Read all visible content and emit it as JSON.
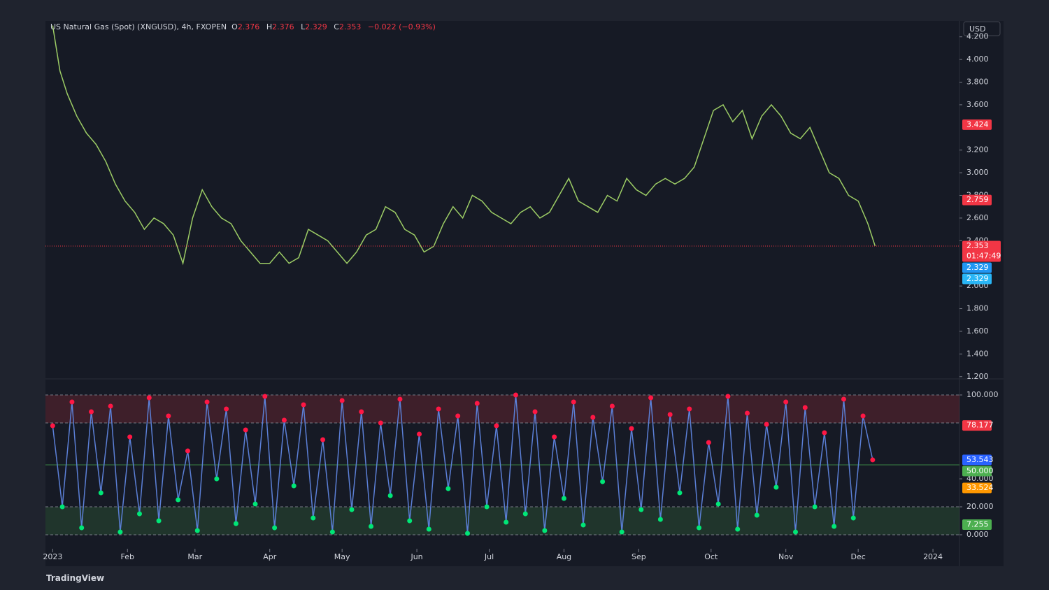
{
  "chart_data": [
    {
      "type": "line",
      "title": "US Natural Gas (Spot) (XNGUSD), 4h, FXOPEN",
      "ohlc": [
        {
          "label": "O",
          "value": "2.376"
        },
        {
          "label": "H",
          "value": "2.376"
        },
        {
          "label": "L",
          "value": "2.329"
        },
        {
          "label": "C",
          "value": "2.353"
        }
      ],
      "change": "−0.022 (−0.93%)",
      "axis_label": "USD",
      "color": "#9ccc65",
      "x": [
        0,
        3,
        6,
        10,
        14,
        18,
        22,
        26,
        30,
        34,
        38,
        42,
        46,
        50,
        54,
        58,
        62,
        66,
        70,
        74,
        78,
        82,
        86,
        90,
        94,
        98,
        102,
        106,
        110,
        114,
        118,
        122,
        126,
        130,
        134,
        138,
        142,
        146,
        150,
        154,
        158,
        162,
        166,
        170,
        174,
        178,
        182,
        186,
        190,
        194,
        198,
        202,
        206,
        210,
        214,
        218,
        222,
        226,
        230,
        234,
        238,
        242,
        246,
        250,
        254,
        258,
        262,
        266,
        270,
        274,
        278,
        282,
        286,
        290,
        294,
        298,
        302,
        306,
        310,
        314,
        318,
        322,
        326,
        330,
        334,
        338,
        341
      ],
      "values": [
        4.3,
        3.9,
        3.7,
        3.5,
        3.35,
        3.25,
        3.1,
        2.9,
        2.75,
        2.65,
        2.5,
        2.6,
        2.55,
        2.45,
        2.2,
        2.6,
        2.85,
        2.7,
        2.6,
        2.55,
        2.4,
        2.3,
        2.2,
        2.2,
        2.3,
        2.2,
        2.25,
        2.5,
        2.45,
        2.4,
        2.3,
        2.2,
        2.3,
        2.45,
        2.5,
        2.7,
        2.65,
        2.5,
        2.45,
        2.3,
        2.35,
        2.55,
        2.7,
        2.6,
        2.8,
        2.75,
        2.65,
        2.6,
        2.55,
        2.65,
        2.7,
        2.6,
        2.65,
        2.8,
        2.95,
        2.75,
        2.7,
        2.65,
        2.8,
        2.75,
        2.95,
        2.85,
        2.8,
        2.9,
        2.95,
        2.9,
        2.95,
        3.05,
        3.3,
        3.55,
        3.6,
        3.45,
        3.55,
        3.3,
        3.5,
        3.6,
        3.5,
        3.35,
        3.3,
        3.4,
        3.2,
        3.0,
        2.95,
        2.8,
        2.75,
        2.55,
        2.353
      ],
      "xlim": [
        -3,
        376
      ],
      "ylim": [
        1.18,
        4.34
      ],
      "yticks": [
        {
          "value": 4.2,
          "label": "4.200"
        },
        {
          "value": 4.0,
          "label": "4.000"
        },
        {
          "value": 3.8,
          "label": "3.800"
        },
        {
          "value": 3.6,
          "label": "3.600"
        },
        {
          "value": 3.2,
          "label": "3.200"
        },
        {
          "value": 3.0,
          "label": "3.000"
        },
        {
          "value": 2.8,
          "label": "2.800"
        },
        {
          "value": 2.6,
          "label": "2.600"
        },
        {
          "value": 2.4,
          "label": "2.400"
        },
        {
          "value": 2.0,
          "label": "2.000"
        },
        {
          "value": 1.8,
          "label": "1.800"
        },
        {
          "value": 1.6,
          "label": "1.600"
        },
        {
          "value": 1.4,
          "label": "1.400"
        },
        {
          "value": 1.2,
          "label": "1.200"
        }
      ],
      "price_tags": [
        {
          "value": 3.424,
          "label": "3.424",
          "color": "#f23645"
        },
        {
          "value": 2.759,
          "label": "2.759",
          "color": "#f23645"
        },
        {
          "value": 2.353,
          "label": "2.353",
          "sub": "01:47:49",
          "color": "#f23645"
        },
        {
          "value": 2.329,
          "label": "2.329",
          "color": "#2196f3"
        },
        {
          "value": 2.329,
          "label": "2.329",
          "color": "#29b6f6"
        }
      ]
    },
    {
      "type": "line",
      "color": "#5b7fd6",
      "x": [
        0,
        4,
        8,
        12,
        16,
        20,
        24,
        28,
        32,
        36,
        40,
        44,
        48,
        52,
        56,
        60,
        64,
        68,
        72,
        76,
        80,
        84,
        88,
        92,
        96,
        100,
        104,
        108,
        112,
        116,
        120,
        124,
        128,
        132,
        136,
        140,
        144,
        148,
        152,
        156,
        160,
        164,
        168,
        172,
        176,
        180,
        184,
        188,
        192,
        196,
        200,
        204,
        208,
        212,
        216,
        220,
        224,
        228,
        232,
        236,
        240,
        244,
        248,
        252,
        256,
        260,
        264,
        268,
        272,
        276,
        280,
        284,
        288,
        292,
        296,
        300,
        304,
        308,
        312,
        316,
        320,
        324,
        328,
        332,
        336,
        340
      ],
      "values": [
        78,
        20,
        95,
        5,
        88,
        30,
        92,
        2,
        70,
        15,
        98,
        10,
        85,
        25,
        60,
        3,
        95,
        40,
        90,
        8,
        75,
        22,
        99,
        5,
        82,
        35,
        93,
        12,
        68,
        2,
        96,
        18,
        88,
        6,
        80,
        28,
        97,
        10,
        72,
        4,
        90,
        33,
        85,
        1,
        94,
        20,
        78,
        9,
        100,
        15,
        88,
        3,
        70,
        26,
        95,
        7,
        84,
        38,
        92,
        2,
        76,
        18,
        98,
        11,
        86,
        30,
        90,
        5,
        66,
        22,
        99,
        4,
        87,
        14,
        79,
        34,
        95,
        2,
        91,
        20,
        73,
        6,
        97,
        12,
        85,
        53.543
      ],
      "xlim": [
        -3,
        376
      ],
      "ylim": [
        -10,
        110
      ],
      "yticks": [
        {
          "value": 100,
          "label": "100.000"
        },
        {
          "value": 40,
          "label": "40.000"
        },
        {
          "value": 20,
          "label": "20.000"
        },
        {
          "value": 0,
          "label": "0.000"
        }
      ],
      "zones": [
        {
          "from": 80,
          "to": 100,
          "color": "rgba(242,54,69,0.18)"
        },
        {
          "from": 0,
          "to": 20,
          "color": "rgba(76,175,80,0.18)"
        }
      ],
      "midline": 50,
      "price_tags": [
        {
          "value": 78.177,
          "label": "78.177",
          "color": "#f23645"
        },
        {
          "value": 53.543,
          "label": "53.543",
          "color": "#2962ff"
        },
        {
          "value": 50,
          "label": "50.000",
          "color": "#4caf50"
        },
        {
          "value": 33.524,
          "label": "33.524",
          "color": "#ff9800"
        },
        {
          "value": 7.255,
          "label": "7.255",
          "color": "#4caf50"
        }
      ],
      "xticks": [
        {
          "value": 0,
          "label": "2023"
        },
        {
          "value": 31,
          "label": "Feb"
        },
        {
          "value": 59,
          "label": "Mar"
        },
        {
          "value": 90,
          "label": "Apr"
        },
        {
          "value": 120,
          "label": "May"
        },
        {
          "value": 151,
          "label": "Jun"
        },
        {
          "value": 181,
          "label": "Jul"
        },
        {
          "value": 212,
          "label": "Aug"
        },
        {
          "value": 243,
          "label": "Sep"
        },
        {
          "value": 273,
          "label": "Oct"
        },
        {
          "value": 304,
          "label": "Nov"
        },
        {
          "value": 334,
          "label": "Dec"
        },
        {
          "value": 365,
          "label": "2024"
        }
      ]
    }
  ],
  "brand": "TradingView"
}
